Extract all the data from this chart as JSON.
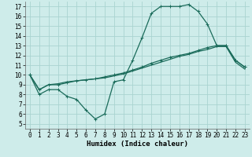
{
  "xlabel": "Humidex (Indice chaleur)",
  "bg_color": "#ceecea",
  "grid_color": "#aad4d0",
  "line_color": "#1a6b5a",
  "xlim": [
    -0.5,
    23.5
  ],
  "ylim": [
    4.5,
    17.5
  ],
  "xticks": [
    0,
    1,
    2,
    3,
    4,
    5,
    6,
    7,
    8,
    9,
    10,
    11,
    12,
    13,
    14,
    15,
    16,
    17,
    18,
    19,
    20,
    21,
    22,
    23
  ],
  "yticks": [
    5,
    6,
    7,
    8,
    9,
    10,
    11,
    12,
    13,
    14,
    15,
    16,
    17
  ],
  "line1_x": [
    0,
    1,
    2,
    3,
    4,
    5,
    6,
    7,
    8,
    9,
    10,
    11,
    12,
    13,
    14,
    15,
    16,
    17,
    18,
    19,
    20,
    21,
    22,
    23
  ],
  "line1_y": [
    10.0,
    8.0,
    8.5,
    8.5,
    7.8,
    7.5,
    6.4,
    5.5,
    6.0,
    9.3,
    9.5,
    11.5,
    13.8,
    16.3,
    17.0,
    17.0,
    17.0,
    17.2,
    16.5,
    15.2,
    13.0,
    13.0,
    11.5,
    10.8
  ],
  "line2_x": [
    0,
    1,
    2,
    3,
    4,
    5,
    6,
    7,
    8,
    9,
    10,
    11,
    12,
    13,
    14,
    15,
    16,
    17,
    18,
    19,
    20,
    21,
    22,
    23
  ],
  "line2_y": [
    10.0,
    8.5,
    9.0,
    9.0,
    9.2,
    9.4,
    9.5,
    9.6,
    9.8,
    10.0,
    10.2,
    10.5,
    10.8,
    11.2,
    11.5,
    11.8,
    12.0,
    12.2,
    12.5,
    12.8,
    13.0,
    13.0,
    11.5,
    10.8
  ],
  "line3_x": [
    0,
    1,
    2,
    3,
    4,
    5,
    6,
    7,
    8,
    9,
    10,
    11,
    12,
    13,
    14,
    15,
    16,
    17,
    18,
    19,
    20,
    21,
    22,
    23
  ],
  "line3_y": [
    10.0,
    8.5,
    9.0,
    9.1,
    9.3,
    9.4,
    9.5,
    9.6,
    9.7,
    9.9,
    10.1,
    10.4,
    10.7,
    11.0,
    11.3,
    11.6,
    11.9,
    12.1,
    12.4,
    12.6,
    12.9,
    12.9,
    11.3,
    10.6
  ],
  "marker_size": 2.5,
  "line_width": 0.9,
  "font_size_ticks": 5.5,
  "font_size_xlabel": 6.5
}
